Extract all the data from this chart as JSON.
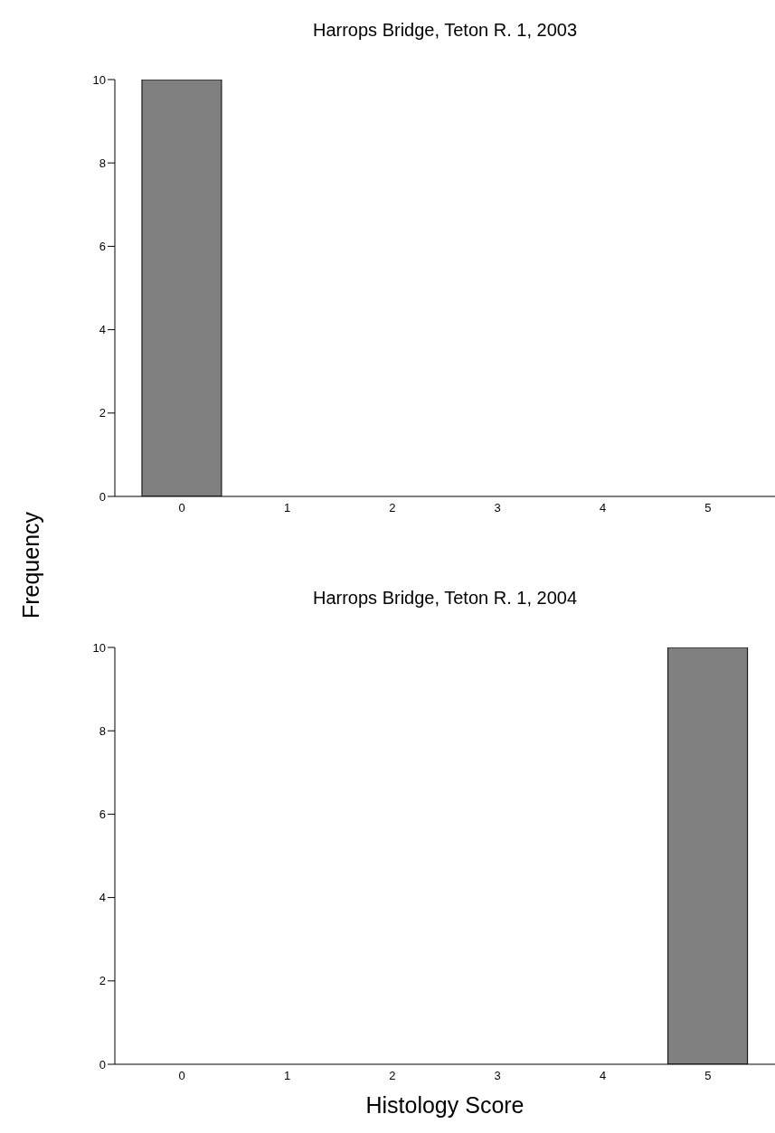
{
  "chart_data": [
    {
      "type": "bar",
      "title": "Harrops Bridge, Teton R. 1, 2003",
      "ylabel": "Frequency",
      "categories": [
        "0",
        "1",
        "2",
        "3",
        "4",
        "5"
      ],
      "values": [
        10,
        0,
        0,
        0,
        0,
        0
      ],
      "color": "#808080",
      "ylim": [
        0,
        10
      ],
      "yticks": [
        0,
        2,
        4,
        6,
        8,
        10
      ],
      "grid": false
    },
    {
      "type": "bar",
      "title": "Harrops Bridge, Teton R. 1, 2004",
      "xlabel": "Histology Score",
      "categories": [
        "0",
        "1",
        "2",
        "3",
        "4",
        "5"
      ],
      "values": [
        0,
        0,
        0,
        0,
        0,
        10
      ],
      "color": "#808080",
      "ylim": [
        0,
        10
      ],
      "yticks": [
        0,
        2,
        4,
        6,
        8,
        10
      ],
      "grid": false
    }
  ]
}
